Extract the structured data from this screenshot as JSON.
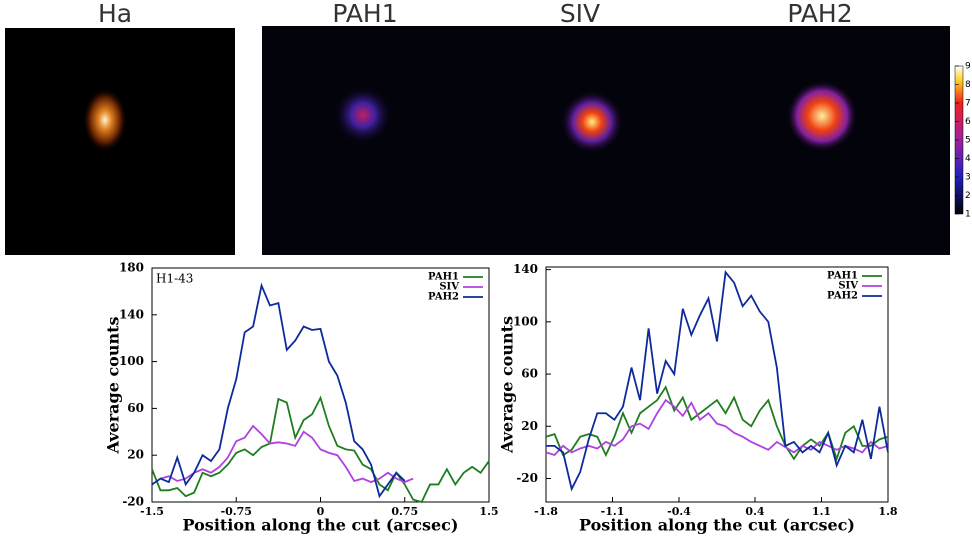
{
  "panels": [
    {
      "label": "Ha"
    },
    {
      "label": "PAH1"
    },
    {
      "label": "SIV"
    },
    {
      "label": "PAH2"
    }
  ],
  "colorbar_ticks": [
    1,
    2,
    3,
    4,
    5,
    6,
    7,
    8,
    9
  ],
  "chart_data": [
    {
      "type": "line",
      "annotation": "H1-43",
      "xlabel": "Position along the cut (arcsec)",
      "ylabel": "Average counts",
      "xlim": [
        -1.5,
        1.5
      ],
      "xticks": [
        -1.5,
        -0.75,
        0,
        0.75,
        1.5
      ],
      "ylim": [
        -20,
        180
      ],
      "yticks": [
        -20,
        20,
        60,
        100,
        140,
        180
      ],
      "legend": "upper right",
      "x": [
        -1.5,
        -1.425,
        -1.35,
        -1.275,
        -1.2,
        -1.125,
        -1.05,
        -0.975,
        -0.9,
        -0.825,
        -0.75,
        -0.675,
        -0.6,
        -0.525,
        -0.45,
        -0.375,
        -0.3,
        -0.225,
        -0.15,
        -0.075,
        0,
        0.075,
        0.15,
        0.225,
        0.3,
        0.375,
        0.45,
        0.525,
        0.6,
        0.675,
        0.75,
        0.825,
        0.9,
        0.975,
        1.05,
        1.125,
        1.2,
        1.275,
        1.35,
        1.425,
        1.5
      ],
      "series": [
        {
          "name": "PAH1",
          "color": "#1f7d1f",
          "values": [
            8,
            -10,
            -10,
            -8,
            -15,
            -12,
            5,
            2,
            5,
            12,
            22,
            25,
            20,
            27,
            30,
            68,
            65,
            35,
            50,
            55,
            69,
            45,
            28,
            25,
            24,
            12,
            8,
            -5,
            -10,
            5,
            -5,
            -18,
            -20,
            -5,
            -5,
            8,
            -5,
            5,
            10,
            5,
            15
          ]
        },
        {
          "name": "SIV",
          "color": "#b040e0",
          "values": [
            null,
            0,
            2,
            -2,
            0,
            5,
            8,
            5,
            10,
            18,
            32,
            35,
            45,
            38,
            30,
            31,
            30,
            28,
            40,
            35,
            25,
            22,
            20,
            10,
            -2,
            0,
            -3,
            0,
            5,
            0,
            -3,
            0,
            null,
            null,
            null,
            null,
            null,
            null,
            null,
            null,
            null
          ]
        },
        {
          "name": "PAH2",
          "color": "#0c2a9c",
          "values": [
            -5,
            0,
            -3,
            18,
            -5,
            5,
            20,
            15,
            25,
            60,
            85,
            125,
            130,
            165,
            148,
            150,
            110,
            118,
            130,
            127,
            128,
            100,
            88,
            65,
            32,
            25,
            12,
            -15,
            -5,
            5,
            -2,
            null,
            null,
            null,
            null,
            null,
            null,
            null,
            null,
            null,
            null
          ]
        }
      ]
    },
    {
      "type": "line",
      "xlabel": "Position along the cut (arcsec)",
      "ylabel": "Average counts",
      "xlim": [
        -1.8,
        1.8
      ],
      "xticks": [
        -1.8,
        -1.1,
        -0.4,
        0.4,
        1.1,
        1.8
      ],
      "ylim": [
        -38,
        142
      ],
      "yticks": [
        -20,
        20,
        60,
        100,
        140
      ],
      "legend": "upper right",
      "x": [
        -1.8,
        -1.71,
        -1.62,
        -1.53,
        -1.44,
        -1.35,
        -1.26,
        -1.17,
        -1.08,
        -0.99,
        -0.9,
        -0.81,
        -0.72,
        -0.63,
        -0.54,
        -0.45,
        -0.36,
        -0.27,
        -0.18,
        -0.09,
        0,
        0.09,
        0.18,
        0.27,
        0.36,
        0.45,
        0.54,
        0.63,
        0.72,
        0.81,
        0.9,
        0.99,
        1.08,
        1.17,
        1.26,
        1.35,
        1.44,
        1.53,
        1.62,
        1.71,
        1.8
      ],
      "series": [
        {
          "name": "PAH1",
          "color": "#1f7d1f",
          "values": [
            12,
            14,
            -2,
            2,
            12,
            14,
            12,
            -2,
            12,
            30,
            15,
            30,
            35,
            40,
            50,
            32,
            42,
            25,
            30,
            35,
            40,
            30,
            42,
            25,
            20,
            32,
            40,
            20,
            5,
            -5,
            5,
            10,
            5,
            15,
            -5,
            15,
            20,
            5,
            5,
            10,
            12
          ]
        },
        {
          "name": "SIV",
          "color": "#b040e0",
          "values": [
            0,
            -2,
            5,
            0,
            3,
            5,
            3,
            8,
            5,
            10,
            20,
            22,
            18,
            30,
            40,
            35,
            28,
            38,
            25,
            30,
            22,
            20,
            15,
            12,
            8,
            5,
            2,
            8,
            4,
            0,
            5,
            2,
            8,
            5,
            2,
            5,
            3,
            0,
            8,
            3,
            5
          ]
        },
        {
          "name": "PAH2",
          "color": "#0c2a9c",
          "values": [
            5,
            5,
            0,
            -28,
            -15,
            10,
            30,
            30,
            25,
            35,
            65,
            40,
            95,
            45,
            70,
            60,
            110,
            90,
            105,
            118,
            85,
            138,
            130,
            112,
            120,
            108,
            100,
            65,
            5,
            8,
            0,
            5,
            0,
            15,
            -10,
            5,
            0,
            25,
            -5,
            35,
            0
          ]
        }
      ]
    }
  ]
}
